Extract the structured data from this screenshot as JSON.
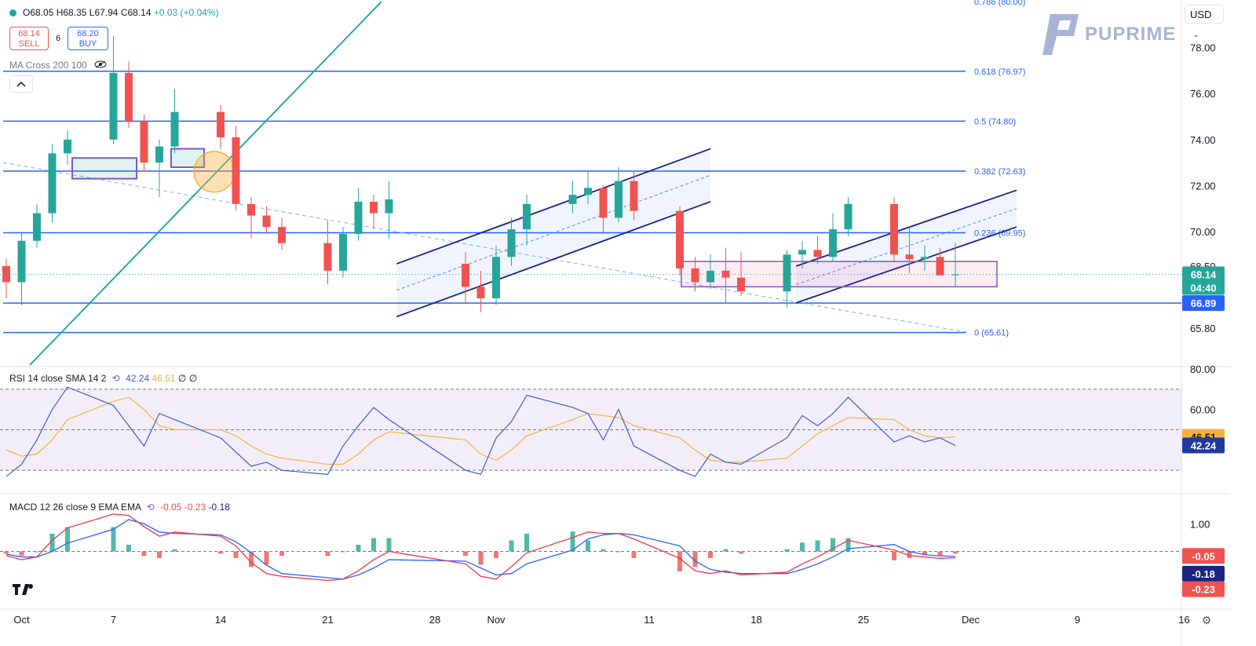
{
  "header": {
    "ohlc": {
      "open": "O68.05",
      "high": "H68.35",
      "low": "L67.94",
      "close": "C68.14",
      "change": "+0.03 (+0.04%)"
    },
    "sell": {
      "price": "68.14",
      "label": "SELL"
    },
    "buy": {
      "price": "68.20",
      "label": "BUY"
    },
    "spread": "6",
    "ma_label": "MA Cross 200 100",
    "collapse_icon": "chevron-up-icon",
    "currency": "USD"
  },
  "logo": {
    "text": "PUPRIME"
  },
  "colors": {
    "up": "#26a69a",
    "down": "#ef5350",
    "fib": "#2962ff",
    "channel": "#1a237e",
    "rsi": "#3c5bc8",
    "rsi_ma": "#f6b13a",
    "macd": "#2962ff",
    "macd_signal": "#f23645",
    "trendline": "#10a5a0"
  },
  "chart_data": [
    {
      "type": "candlestick",
      "title": "",
      "ylim": [
        64.2,
        80.0
      ],
      "y_ticks": [
        "78.00",
        "76.00",
        "74.00",
        "72.00",
        "70.00",
        "68.50",
        "65.80"
      ],
      "x_ticks": [
        "Oct",
        "7",
        "14",
        "21",
        "28",
        "Nov",
        "11",
        "18",
        "25",
        "Dec",
        "9",
        "16"
      ],
      "fib_levels": [
        {
          "label": "0.618 (76.97)",
          "value": 76.97
        },
        {
          "label": "0.5 (74.80)",
          "value": 74.8
        },
        {
          "label": "0.382 (72.63)",
          "value": 72.63
        },
        {
          "label": "0.236 (69.95)",
          "value": 69.95
        },
        {
          "label": "0 (65.61)",
          "value": 65.61
        }
      ],
      "fib_top_partial": "0.786 (80.00)",
      "support_level": 66.89,
      "price_labels": {
        "current": "68.14",
        "countdown": "04:40",
        "support": "66.89"
      },
      "series": [
        {
          "name": "",
          "ohlc": [
            [
              "Sep 30",
              68.5,
              68.8,
              67.1,
              67.8
            ],
            [
              "Oct 1",
              67.8,
              70.0,
              66.8,
              69.6
            ],
            [
              "Oct 2",
              69.6,
              71.2,
              69.3,
              70.8
            ],
            [
              "Oct 3",
              70.8,
              73.8,
              70.4,
              73.4
            ],
            [
              "Oct 4",
              73.4,
              74.4,
              72.9,
              74.0
            ],
            [
              "Oct 7",
              74.0,
              78.5,
              73.8,
              76.9
            ],
            [
              "Oct 8",
              76.9,
              77.4,
              74.5,
              74.8
            ],
            [
              "Oct 9",
              74.8,
              75.1,
              72.6,
              73.0
            ],
            [
              "Oct 10",
              73.0,
              74.0,
              71.5,
              73.7
            ],
            [
              "Oct 11",
              73.7,
              76.2,
              73.4,
              75.2
            ],
            [
              "Oct 14",
              75.2,
              75.5,
              73.6,
              74.1
            ],
            [
              "Oct 15",
              74.1,
              74.6,
              70.9,
              71.2
            ],
            [
              "Oct 16",
              71.2,
              71.5,
              69.7,
              70.7
            ],
            [
              "Oct 17",
              70.7,
              71.1,
              69.9,
              70.2
            ],
            [
              "Oct 18",
              70.2,
              70.6,
              69.2,
              69.5
            ],
            [
              "Oct 21",
              69.5,
              70.5,
              67.7,
              68.3
            ],
            [
              "Oct 22",
              68.3,
              70.2,
              68.0,
              69.9
            ],
            [
              "Oct 23",
              69.9,
              71.9,
              69.6,
              71.3
            ],
            [
              "Oct 24",
              71.3,
              71.6,
              70.1,
              70.8
            ],
            [
              "Oct 25",
              70.8,
              72.2,
              69.7,
              71.4
            ],
            [
              "Oct 28",
              68.6,
              69.1,
              66.9,
              67.6
            ],
            [
              "Oct 29",
              67.6,
              68.3,
              66.5,
              67.1
            ],
            [
              "Oct 30",
              67.1,
              69.4,
              66.8,
              68.9
            ],
            [
              "Oct 31",
              68.9,
              70.6,
              68.5,
              70.1
            ],
            [
              "Nov 1",
              70.1,
              71.6,
              69.4,
              71.2
            ],
            [
              "Nov 4",
              71.2,
              72.2,
              70.8,
              71.6
            ],
            [
              "Nov 5",
              71.6,
              72.6,
              71.2,
              71.9
            ],
            [
              "Nov 6",
              71.9,
              72.0,
              69.9,
              70.6
            ],
            [
              "Nov 7",
              70.6,
              72.8,
              70.4,
              72.2
            ],
            [
              "Nov 8",
              72.2,
              72.6,
              70.5,
              70.9
            ],
            [
              "Nov 11",
              70.9,
              71.1,
              68.1,
              68.4
            ],
            [
              "Nov 12",
              68.4,
              68.9,
              67.4,
              67.8
            ],
            [
              "Nov 13",
              67.8,
              69.0,
              67.5,
              68.3
            ],
            [
              "Nov 14",
              68.3,
              69.3,
              66.9,
              68.0
            ],
            [
              "Nov 15",
              68.0,
              69.1,
              67.2,
              67.4
            ],
            [
              "Nov 18",
              67.4,
              69.2,
              66.7,
              69.0
            ],
            [
              "Nov 19",
              69.0,
              69.6,
              68.4,
              69.2
            ],
            [
              "Nov 20",
              69.2,
              69.8,
              68.6,
              68.9
            ],
            [
              "Nov 21",
              68.9,
              70.8,
              68.7,
              70.1
            ],
            [
              "Nov 22",
              70.1,
              71.5,
              69.8,
              71.2
            ],
            [
              "Nov 25",
              71.2,
              71.5,
              68.7,
              69.0
            ],
            [
              "Nov 26",
              69.0,
              70.2,
              68.2,
              68.8
            ],
            [
              "Nov 27",
              68.8,
              69.4,
              68.3,
              68.9
            ],
            [
              "Nov 28",
              68.9,
              69.3,
              68.1,
              68.1
            ],
            [
              "Nov 29",
              68.1,
              69.5,
              67.6,
              68.14
            ]
          ]
        }
      ],
      "annotations": [
        "ascending channel (Oct 28 - Nov 11)",
        "ascending channel (Nov 18 - Nov 27)",
        "range box 67.6 - 68.7",
        "support 66.89"
      ]
    },
    {
      "type": "line",
      "title": "RSI 14 close SMA 14 2",
      "legend_values": {
        "rsi": "42.24",
        "sma": "46.51",
        "extra1": "∅",
        "extra2": "∅"
      },
      "ylim": [
        20,
        80
      ],
      "y_ticks": [
        "80.00",
        "60.00"
      ],
      "band": [
        30,
        70
      ],
      "price_labels": [
        "46.51",
        "42.24"
      ],
      "series": [
        {
          "name": "RSI",
          "values": [
            27,
            33,
            45,
            60,
            71,
            62,
            52,
            42,
            58,
            55,
            46,
            39,
            32,
            34,
            30,
            28,
            42,
            52,
            61,
            55,
            30,
            28,
            46,
            54,
            67,
            61,
            58,
            45,
            60,
            42,
            30,
            27,
            38,
            34,
            33,
            46,
            57,
            52,
            58,
            66,
            44,
            47,
            44,
            46,
            42.24
          ]
        },
        {
          "name": "SMA",
          "values": [
            40,
            37,
            38,
            45,
            55,
            64,
            66,
            60,
            52,
            50,
            50,
            47,
            42,
            38,
            36,
            33,
            33,
            38,
            45,
            49,
            45,
            38,
            35,
            40,
            47,
            55,
            58,
            57,
            56,
            52,
            46,
            40,
            35,
            34,
            34,
            36,
            42,
            48,
            52,
            56,
            55,
            50,
            47,
            46,
            46.51
          ]
        }
      ]
    },
    {
      "type": "bar",
      "title": "MACD 12 26 close 9 EMA EMA",
      "legend_values": {
        "hist": "-0.05",
        "macd": "-0.23",
        "signal": "-0.18"
      },
      "ylim": [
        -2.0,
        2.0
      ],
      "y_ticks": [
        "1.00"
      ],
      "price_labels": {
        "hist": "-0.05",
        "signal": "-0.18",
        "macd": "-0.23"
      },
      "series": [
        {
          "name": "MACD",
          "values": [
            -0.15,
            -0.3,
            -0.2,
            0.4,
            0.85,
            1.35,
            1.3,
            0.9,
            0.55,
            0.7,
            0.55,
            0.2,
            -0.4,
            -0.8,
            -0.9,
            -1.05,
            -1.0,
            -0.7,
            -0.3,
            0.0,
            -0.45,
            -0.9,
            -1.0,
            -0.55,
            -0.05,
            0.5,
            0.7,
            0.65,
            0.65,
            0.45,
            -0.25,
            -0.7,
            -0.8,
            -0.7,
            -0.85,
            -0.75,
            -0.45,
            -0.2,
            0.1,
            0.4,
            0.05,
            -0.15,
            -0.2,
            -0.25,
            -0.23
          ]
        },
        {
          "name": "Signal",
          "values": [
            -0.1,
            -0.2,
            -0.2,
            0.0,
            0.3,
            0.8,
            1.15,
            1.0,
            0.7,
            0.65,
            0.6,
            0.35,
            -0.05,
            -0.5,
            -0.8,
            -0.95,
            -1.0,
            -0.85,
            -0.6,
            -0.3,
            -0.35,
            -0.6,
            -0.85,
            -0.8,
            -0.45,
            0.05,
            0.45,
            0.6,
            0.65,
            0.6,
            0.2,
            -0.35,
            -0.65,
            -0.75,
            -0.8,
            -0.8,
            -0.65,
            -0.45,
            -0.2,
            0.1,
            0.25,
            0.0,
            -0.12,
            -0.16,
            -0.18
          ]
        }
      ]
    }
  ]
}
